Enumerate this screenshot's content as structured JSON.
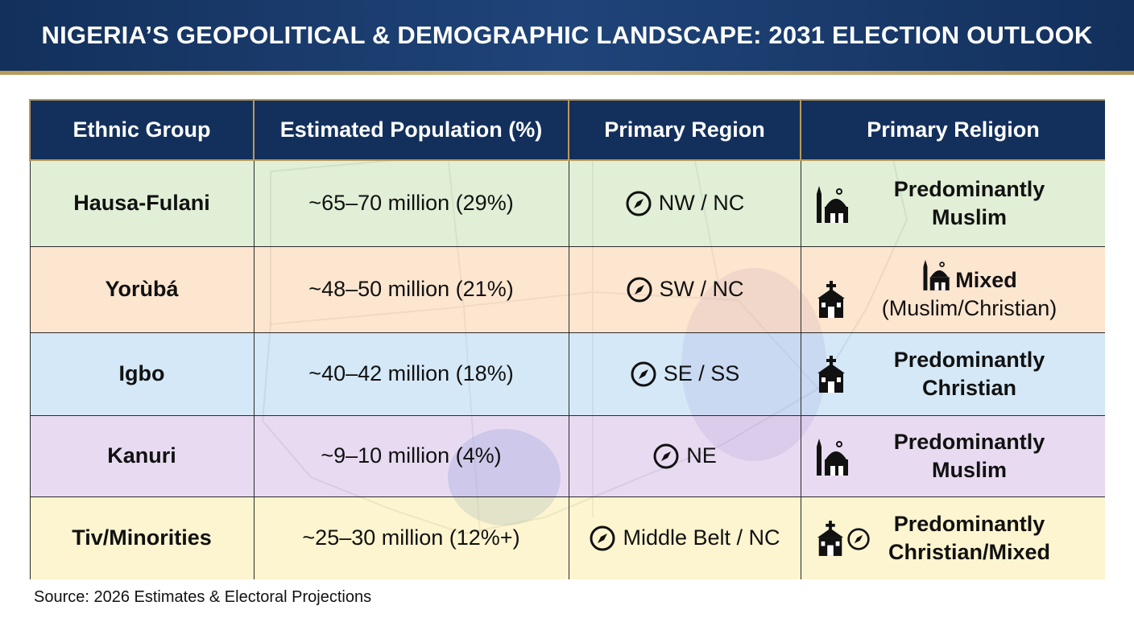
{
  "title": "NIGERIA’S GEOPOLITICAL & DEMOGRAPHIC LANDSCAPE: 2031 ELECTION OUTLOOK",
  "colors": {
    "header_bg": "#13305c",
    "accent_gold": "#b89a5a",
    "row_green": "#d9ecc9",
    "row_orange": "#fde0c4",
    "row_blue": "#cfe6f6",
    "row_purple": "#e4d4ee",
    "row_yellow": "#fdf1c6"
  },
  "chart_data": {
    "type": "table",
    "title": "NIGERIA’S GEOPOLITICAL & DEMOGRAPHIC LANDSCAPE: 2031 ELECTION OUTLOOK",
    "columns": [
      "Ethnic Group",
      "Estimated Population (%)",
      "Primary Region",
      "Primary Religion"
    ],
    "rows": [
      {
        "group": "Hausa-Fulani",
        "population": "~65–70 million (29%)",
        "region": "NW / NC",
        "religion_line1": "Predominantly",
        "religion_line2": "Muslim",
        "icons": [
          "mosque-icon"
        ]
      },
      {
        "group": "Yorùbá",
        "population": "~48–50 million (21%)",
        "region": "SW / NC",
        "religion_line1": "Mixed",
        "religion_line2": "(Muslim/Christian)",
        "icons": [
          "church-icon",
          "mosque-icon"
        ]
      },
      {
        "group": "Igbo",
        "population": "~40–42 million (18%)",
        "region": "SE / SS",
        "religion_line1": "Predominantly",
        "religion_line2": "Christian",
        "icons": [
          "church-icon"
        ]
      },
      {
        "group": "Kanuri",
        "population": "~9–10 million (4%)",
        "region": "NE",
        "religion_line1": "Predominantly",
        "religion_line2": "Muslim",
        "icons": [
          "mosque-icon"
        ]
      },
      {
        "group": "Tiv/Minorities",
        "population": "~25–30 million (12%+)",
        "region": "Middle Belt / NC",
        "religion_line1": "Predominantly",
        "religion_line2": "Christian/Mixed",
        "icons": [
          "church-icon",
          "compass-icon"
        ]
      }
    ]
  },
  "source": "Source: 2026 Estimates & Electoral Projections"
}
